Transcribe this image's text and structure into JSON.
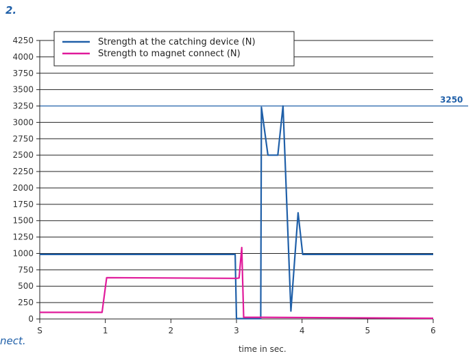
{
  "heading": "2.",
  "left_fragment": "nect.",
  "chart_data": {
    "type": "line",
    "title": "",
    "xlabel": "time in sec.",
    "ylabel": "",
    "xlim": [
      0,
      6
    ],
    "ylim": [
      0,
      4250
    ],
    "x_ticks": [
      {
        "value": 0,
        "label": "S"
      },
      {
        "value": 1,
        "label": "1"
      },
      {
        "value": 2,
        "label": "2"
      },
      {
        "value": 3,
        "label": "3"
      },
      {
        "value": 4,
        "label": "4"
      },
      {
        "value": 5,
        "label": "5"
      },
      {
        "value": 6,
        "label": "6"
      }
    ],
    "y_ticks": [
      0,
      250,
      500,
      750,
      1000,
      1250,
      1500,
      1750,
      2000,
      2250,
      2500,
      2750,
      3000,
      3250,
      3500,
      3750,
      4000,
      4250
    ],
    "grid": "horizontal",
    "legend_position": "top-left",
    "reference_line": {
      "value": 3250,
      "label": "3250",
      "color": "#1f5fa8"
    },
    "series": [
      {
        "name": "Strength at the catching device (N)",
        "color": "#1f5fa8",
        "points": [
          [
            0,
            985
          ],
          [
            2.98,
            985
          ],
          [
            3.0,
            5
          ],
          [
            3.37,
            5
          ],
          [
            3.38,
            3230
          ],
          [
            3.48,
            2500
          ],
          [
            3.63,
            2500
          ],
          [
            3.71,
            3250
          ],
          [
            3.83,
            120
          ],
          [
            3.94,
            1620
          ],
          [
            4.01,
            985
          ],
          [
            6,
            985
          ]
        ]
      },
      {
        "name": "Strength to magnet connect (N)",
        "color": "#e0199a",
        "points": [
          [
            0,
            100
          ],
          [
            0.95,
            100
          ],
          [
            1.02,
            630
          ],
          [
            3.0,
            620
          ],
          [
            3.04,
            625
          ],
          [
            3.08,
            1090
          ],
          [
            3.11,
            25
          ],
          [
            3.4,
            25
          ],
          [
            6,
            10
          ]
        ]
      }
    ]
  }
}
